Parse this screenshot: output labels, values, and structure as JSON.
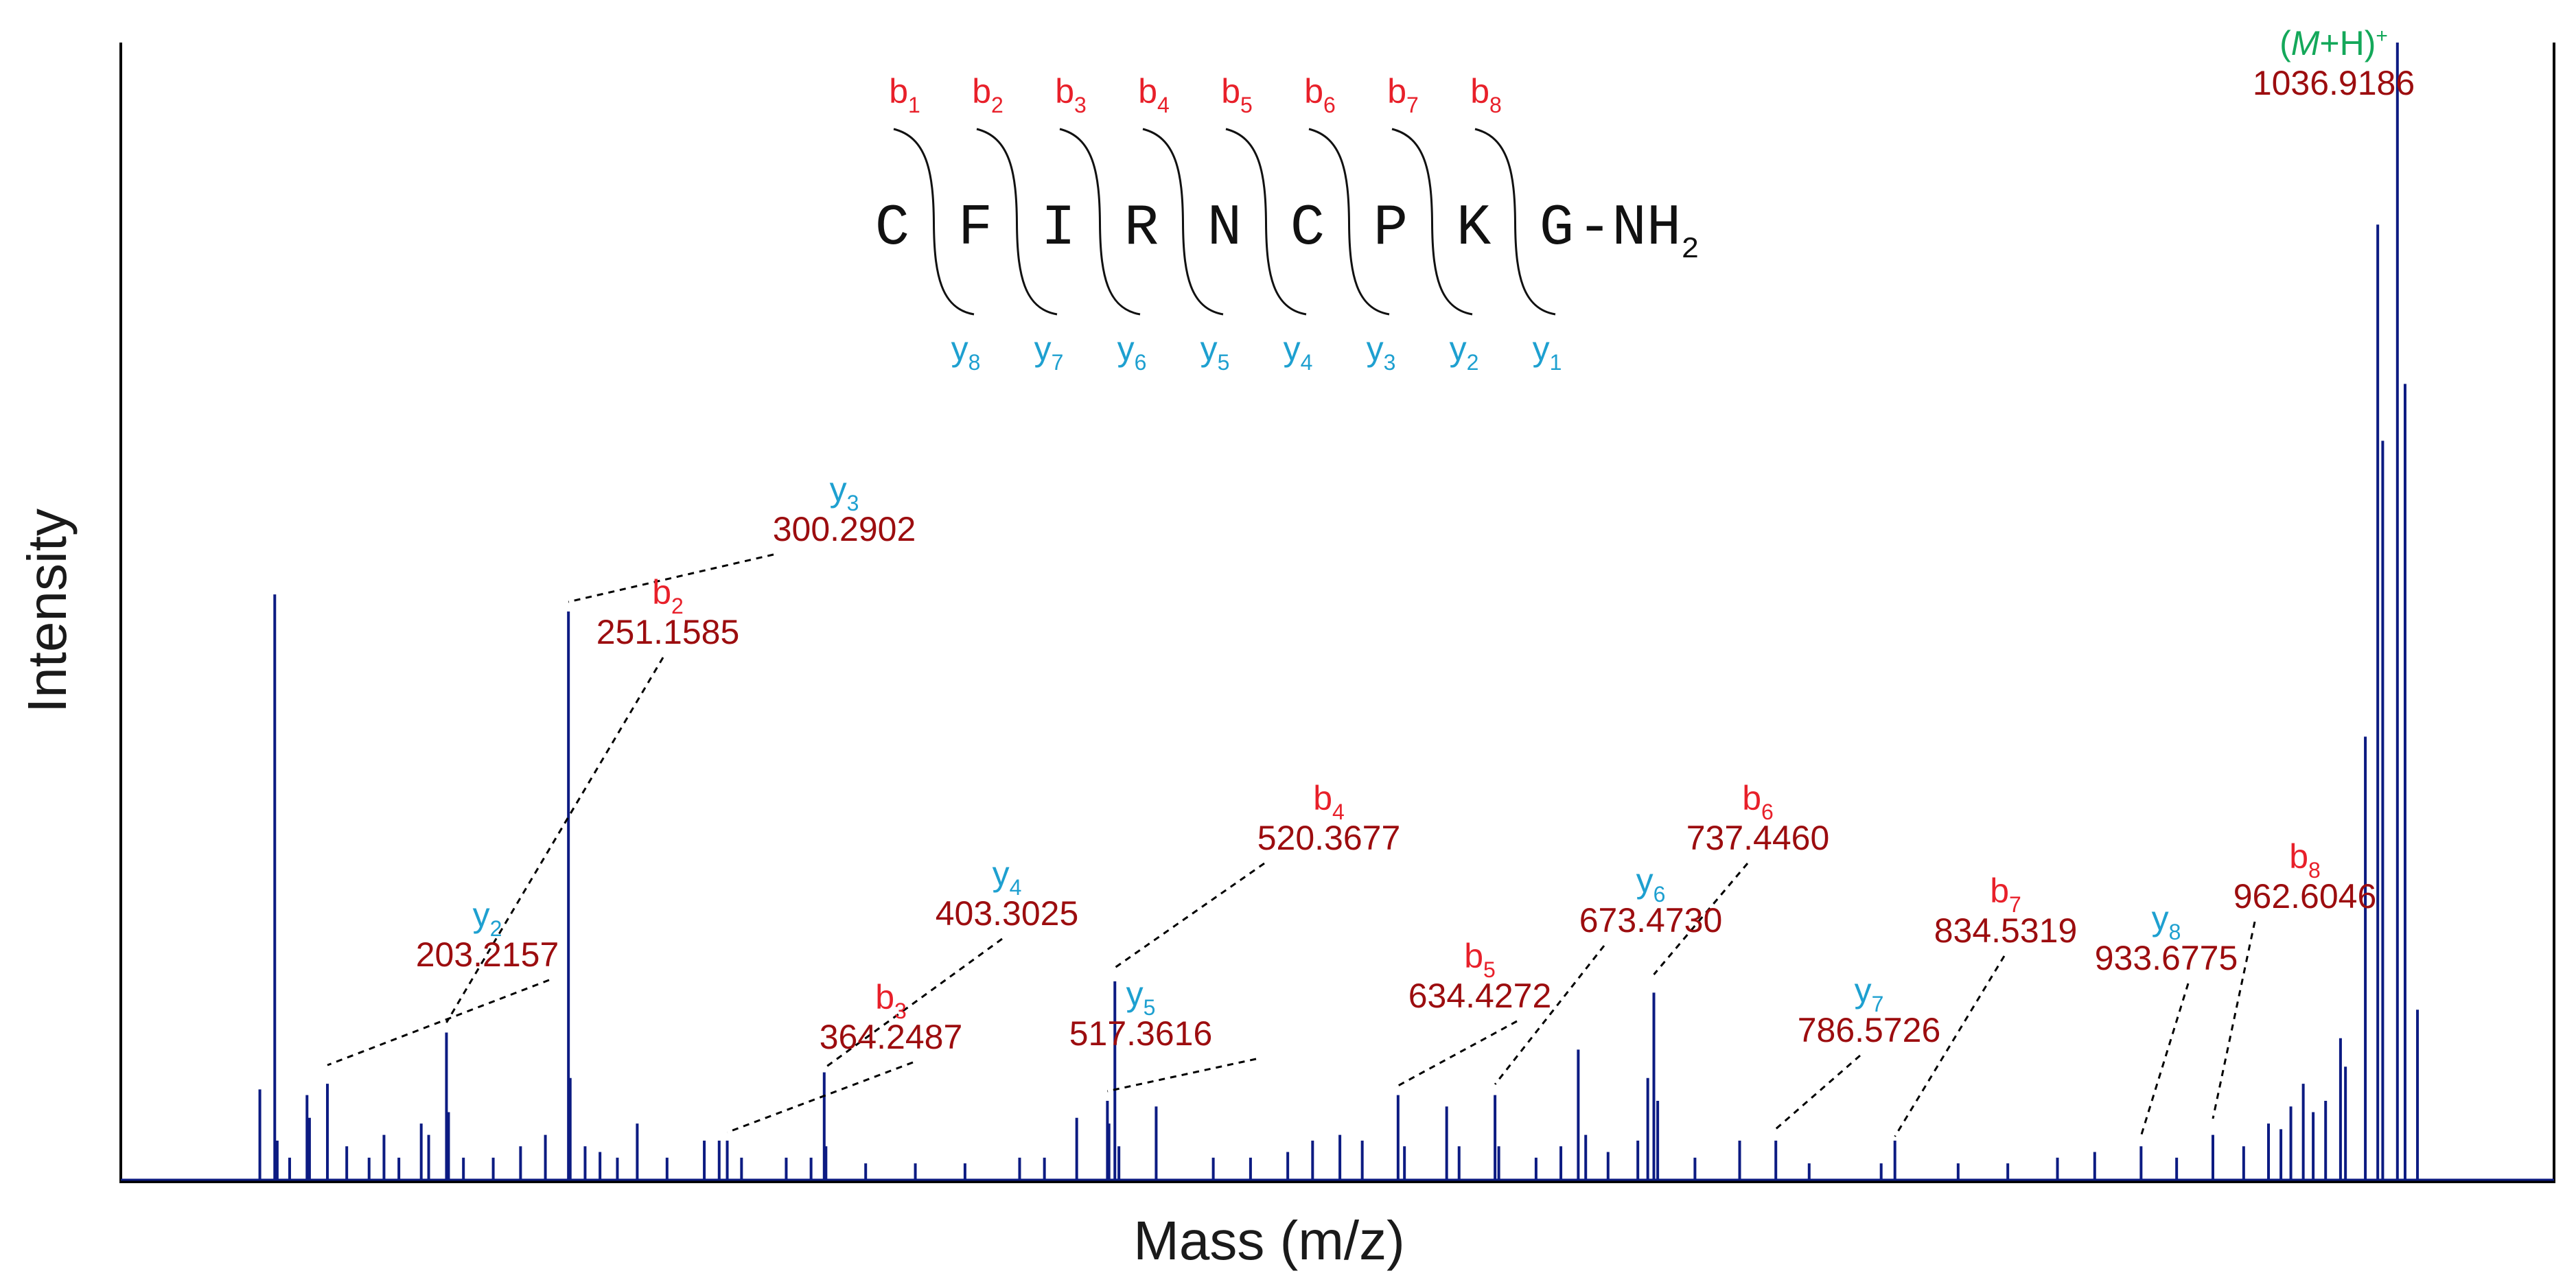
{
  "chart_data": {
    "type": "line",
    "title": "",
    "xlabel": "Mass (m/z)",
    "ylabel": "Intensity",
    "xlim": [
      120,
      1100
    ],
    "ylim": [
      0,
      100
    ],
    "grid": false,
    "colors": {
      "spectrum": "#0c1b82",
      "b_ion": "#e8202a",
      "y_ion": "#1ea0d0",
      "mass": "#9c0d0f",
      "precursor": "#14a85a"
    },
    "peptide": {
      "residues": [
        "C",
        "F",
        "I",
        "R",
        "N",
        "C",
        "P",
        "K",
        "G"
      ],
      "c_term": "-NH",
      "c_term_sub": "2",
      "b_labels": [
        "b1",
        "b2",
        "b3",
        "b4",
        "b5",
        "b6",
        "b7",
        "b8"
      ],
      "y_labels": [
        "y8",
        "y7",
        "y6",
        "y5",
        "y4",
        "y3",
        "y2",
        "y1"
      ]
    },
    "peaks": [
      {
        "mz": 176,
        "intensity": 8
      },
      {
        "mz": 182,
        "intensity": 51.5
      },
      {
        "mz": 183,
        "intensity": 3.5
      },
      {
        "mz": 188,
        "intensity": 2
      },
      {
        "mz": 195,
        "intensity": 7.5
      },
      {
        "mz": 196,
        "intensity": 5.5
      },
      {
        "mz": 203.2157,
        "intensity": 8.5
      },
      {
        "mz": 211,
        "intensity": 3
      },
      {
        "mz": 220,
        "intensity": 2
      },
      {
        "mz": 226,
        "intensity": 4
      },
      {
        "mz": 232,
        "intensity": 2
      },
      {
        "mz": 241,
        "intensity": 5
      },
      {
        "mz": 244,
        "intensity": 4
      },
      {
        "mz": 251.1585,
        "intensity": 13
      },
      {
        "mz": 252,
        "intensity": 6
      },
      {
        "mz": 258,
        "intensity": 2
      },
      {
        "mz": 270,
        "intensity": 2
      },
      {
        "mz": 281,
        "intensity": 3
      },
      {
        "mz": 291,
        "intensity": 4
      },
      {
        "mz": 300.2902,
        "intensity": 50
      },
      {
        "mz": 301,
        "intensity": 9
      },
      {
        "mz": 307,
        "intensity": 3
      },
      {
        "mz": 313,
        "intensity": 2.5
      },
      {
        "mz": 320,
        "intensity": 2
      },
      {
        "mz": 328,
        "intensity": 5
      },
      {
        "mz": 340,
        "intensity": 2
      },
      {
        "mz": 355,
        "intensity": 3.5
      },
      {
        "mz": 361,
        "intensity": 3.5
      },
      {
        "mz": 364.2487,
        "intensity": 3.5
      },
      {
        "mz": 370,
        "intensity": 2
      },
      {
        "mz": 388,
        "intensity": 2
      },
      {
        "mz": 398,
        "intensity": 2
      },
      {
        "mz": 403.3025,
        "intensity": 9.5
      },
      {
        "mz": 404,
        "intensity": 3
      },
      {
        "mz": 420,
        "intensity": 1.5
      },
      {
        "mz": 440,
        "intensity": 1.5
      },
      {
        "mz": 460,
        "intensity": 1.5
      },
      {
        "mz": 482,
        "intensity": 2
      },
      {
        "mz": 492,
        "intensity": 2
      },
      {
        "mz": 505,
        "intensity": 5.5
      },
      {
        "mz": 517.3616,
        "intensity": 7
      },
      {
        "mz": 518,
        "intensity": 5
      },
      {
        "mz": 520.3677,
        "intensity": 17.5
      },
      {
        "mz": 522,
        "intensity": 3
      },
      {
        "mz": 537,
        "intensity": 6.5
      },
      {
        "mz": 560,
        "intensity": 2
      },
      {
        "mz": 575,
        "intensity": 2
      },
      {
        "mz": 590,
        "intensity": 2.5
      },
      {
        "mz": 600,
        "intensity": 3.5
      },
      {
        "mz": 611,
        "intensity": 4
      },
      {
        "mz": 620,
        "intensity": 3.5
      },
      {
        "mz": 634.4272,
        "intensity": 7.5
      },
      {
        "mz": 637,
        "intensity": 3
      },
      {
        "mz": 654,
        "intensity": 6.5
      },
      {
        "mz": 659,
        "intensity": 3
      },
      {
        "mz": 673.473,
        "intensity": 7.5
      },
      {
        "mz": 675,
        "intensity": 3
      },
      {
        "mz": 690,
        "intensity": 2
      },
      {
        "mz": 700,
        "intensity": 3
      },
      {
        "mz": 707,
        "intensity": 11.5
      },
      {
        "mz": 710,
        "intensity": 4
      },
      {
        "mz": 719,
        "intensity": 2.5
      },
      {
        "mz": 731,
        "intensity": 3.5
      },
      {
        "mz": 735,
        "intensity": 9
      },
      {
        "mz": 737.446,
        "intensity": 16.5
      },
      {
        "mz": 739,
        "intensity": 7
      },
      {
        "mz": 754,
        "intensity": 2
      },
      {
        "mz": 772,
        "intensity": 3.5
      },
      {
        "mz": 786.5726,
        "intensity": 3.5
      },
      {
        "mz": 800,
        "intensity": 1.5
      },
      {
        "mz": 829,
        "intensity": 1.5
      },
      {
        "mz": 834.5319,
        "intensity": 3.5
      },
      {
        "mz": 860,
        "intensity": 1.5
      },
      {
        "mz": 880,
        "intensity": 1.5
      },
      {
        "mz": 900,
        "intensity": 2
      },
      {
        "mz": 915,
        "intensity": 2.5
      },
      {
        "mz": 933.6775,
        "intensity": 3
      },
      {
        "mz": 948,
        "intensity": 2
      },
      {
        "mz": 962.6046,
        "intensity": 4
      },
      {
        "mz": 975,
        "intensity": 3
      },
      {
        "mz": 985,
        "intensity": 5
      },
      {
        "mz": 990,
        "intensity": 4.5
      },
      {
        "mz": 994,
        "intensity": 6.5
      },
      {
        "mz": 999,
        "intensity": 8.5
      },
      {
        "mz": 1003,
        "intensity": 6
      },
      {
        "mz": 1008,
        "intensity": 7
      },
      {
        "mz": 1014,
        "intensity": 12.5
      },
      {
        "mz": 1016,
        "intensity": 10
      },
      {
        "mz": 1024,
        "intensity": 39
      },
      {
        "mz": 1029,
        "intensity": 84
      },
      {
        "mz": 1031,
        "intensity": 65
      },
      {
        "mz": 1036.9186,
        "intensity": 100
      },
      {
        "mz": 1040,
        "intensity": 70
      },
      {
        "mz": 1045,
        "intensity": 15
      }
    ],
    "annotations": [
      {
        "ion": "y",
        "sub": "2",
        "mass": "203.2157",
        "mz": 203.2157
      },
      {
        "ion": "b",
        "sub": "2",
        "mass": "251.1585",
        "mz": 251.1585
      },
      {
        "ion": "y",
        "sub": "3",
        "mass": "300.2902",
        "mz": 300.2902
      },
      {
        "ion": "b",
        "sub": "3",
        "mass": "364.2487",
        "mz": 364.2487
      },
      {
        "ion": "y",
        "sub": "4",
        "mass": "403.3025",
        "mz": 403.3025
      },
      {
        "ion": "y",
        "sub": "5",
        "mass": "517.3616",
        "mz": 517.3616
      },
      {
        "ion": "b",
        "sub": "4",
        "mass": "520.3677",
        "mz": 520.3677
      },
      {
        "ion": "b",
        "sub": "5",
        "mass": "634.4272",
        "mz": 634.4272
      },
      {
        "ion": "y",
        "sub": "6",
        "mass": "673.4730",
        "mz": 673.473
      },
      {
        "ion": "b",
        "sub": "6",
        "mass": "737.4460",
        "mz": 737.446
      },
      {
        "ion": "y",
        "sub": "7",
        "mass": "786.5726",
        "mz": 786.5726
      },
      {
        "ion": "b",
        "sub": "7",
        "mass": "834.5319",
        "mz": 834.5319
      },
      {
        "ion": "y",
        "sub": "8",
        "mass": "933.6775",
        "mz": 933.6775
      },
      {
        "ion": "b",
        "sub": "8",
        "mass": "962.6046",
        "mz": 962.6046
      },
      {
        "ion": "precursor",
        "prefix": "(",
        "italic": "M",
        "suffix": "+H)",
        "sup": "+",
        "mass": "1036.9186",
        "mz": 1036.9186
      }
    ]
  }
}
